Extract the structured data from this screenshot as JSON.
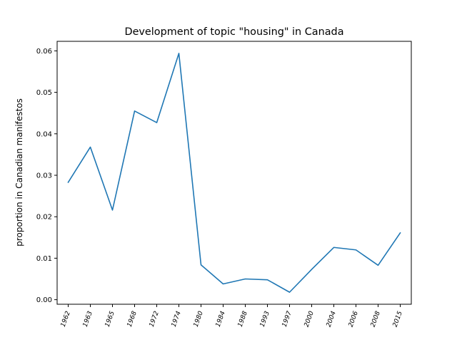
{
  "chart_data": {
    "type": "line",
    "title": "Development of topic \"housing\" in Canada",
    "xlabel": "",
    "ylabel": "proportion in Canadian manifestos",
    "categories": [
      "1962",
      "1963",
      "1965",
      "1968",
      "1972",
      "1974",
      "1980",
      "1984",
      "1988",
      "1993",
      "1997",
      "2000",
      "2004",
      "2006",
      "2008",
      "2015"
    ],
    "series": [
      {
        "values": [
          0.0283,
          0.0368,
          0.0216,
          0.0455,
          0.0427,
          0.0594,
          0.0084,
          0.0038,
          0.005,
          0.0048,
          0.0018,
          0.0073,
          0.0126,
          0.012,
          0.0083,
          0.0161
        ],
        "color": "#1f77b4"
      }
    ],
    "ylim": [
      -0.0011,
      0.0623
    ],
    "yticks": [
      0.0,
      0.01,
      0.02,
      0.03,
      0.04,
      0.05,
      0.06
    ],
    "ytick_labels": [
      "0.00",
      "0.01",
      "0.02",
      "0.03",
      "0.04",
      "0.05",
      "0.06"
    ],
    "grid": false,
    "legend": "none"
  }
}
